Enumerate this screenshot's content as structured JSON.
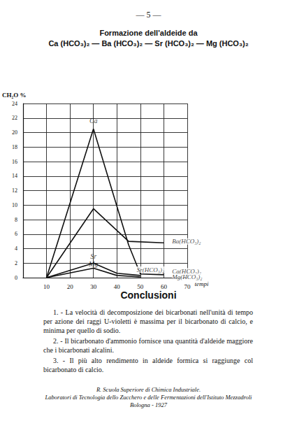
{
  "header": {
    "page_number": "— 5 —"
  },
  "chart_data": {
    "type": "line",
    "title": "Formazione dell'aldeide da",
    "subtitle": "Ca (HCO₃)₂ — Ba (HCO₃)₂ — Sr (HCO₃)₂ — Mg (HCO₃)₂",
    "y_label": "CH₂O %",
    "x_label": "tempi",
    "xlim": [
      0,
      70
    ],
    "xticks": [
      10,
      20,
      30,
      40,
      50,
      60,
      70
    ],
    "ylim": [
      0,
      24
    ],
    "yticks": [
      0,
      2,
      4,
      6,
      8,
      10,
      12,
      14,
      16,
      18,
      20,
      22,
      24
    ],
    "grid": true,
    "series": [
      {
        "name": "Ca(HCO₃)₂",
        "color": "#111111",
        "x": [
          10,
          30,
          45,
          50,
          60
        ],
        "values": [
          0,
          20.5,
          4.5,
          0.5,
          0.4
        ],
        "name_at": [
          62,
          0.9
        ]
      },
      {
        "name": "Ba(HCO₃)₂",
        "color": "#111111",
        "x": [
          10,
          30,
          45,
          60
        ],
        "values": [
          0,
          9.5,
          5,
          4.8
        ],
        "name_at": [
          62,
          5
        ]
      },
      {
        "name": "Sr(HCO₃)₂",
        "color": "#111111",
        "x": [
          10,
          30,
          40,
          50
        ],
        "values": [
          0,
          2,
          0.6,
          0.3
        ],
        "name_at": [
          47,
          1.1
        ]
      },
      {
        "name": "Mg(HCO₃)₂",
        "color": "#111111",
        "x": [
          10,
          30,
          40,
          50
        ],
        "values": [
          0,
          1.3,
          0.3,
          0.1
        ],
        "name_at": [
          62,
          0.1
        ]
      }
    ],
    "annotations": [
      {
        "text": "Ca",
        "x": 30,
        "y": 21.6
      },
      {
        "text": "Sr",
        "x": 30,
        "y": 2.9
      },
      {
        "text": "Mg",
        "x": 30,
        "y": 1.9
      }
    ]
  },
  "conclusions": {
    "title": "Conclusioni",
    "items": [
      "1. - La velocità di decomposizione dei bicarbonati nell'unità di tempo per azione dei raggi U-violetti è massima per il bicarbonato di calcio, e minima per quello di sodio.",
      "2. - Il bicarbonato d'ammonio fornisce una quantità d'aldeide maggiore che i bicarbonati alcalini.",
      "3. - Il più alto rendimento in aldeide formica si raggiunge col bicarbonato di calcio."
    ]
  },
  "footer": [
    "R. Scuola Superiore di Chimica Industriale.",
    "Laboratori di Tecnologia dello Zucchero e delle Fermentazioni dell'Istituto Mezzadroli",
    "Bologna - 1927"
  ]
}
